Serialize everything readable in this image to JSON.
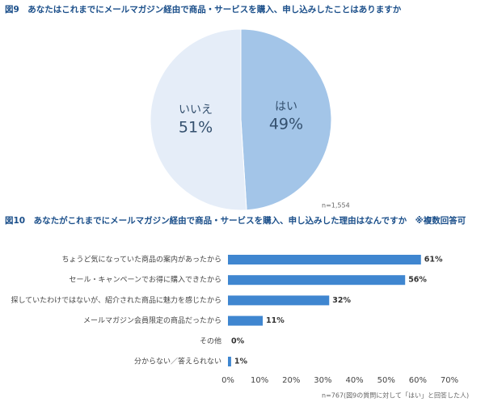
{
  "chart_data": [
    {
      "type": "pie",
      "title": "図9　あなたはこれまでにメールマガジン経由で商品・サービスを購入、申し込みしたことはありますか",
      "categories": [
        "はい",
        "いいえ"
      ],
      "values": [
        49,
        51
      ],
      "value_labels": [
        "49%",
        "51%"
      ],
      "colors": [
        "#a3c5e8",
        "#e5edf8"
      ],
      "note": "n=1,554"
    },
    {
      "type": "bar",
      "horizontal": true,
      "title": "図10　あなたがこれまでにメールマガジン経由で商品・サービスを購入、申し込みした理由はなんですか　※複数回答可",
      "categories": [
        "ちょうど気になっていた商品の案内があったから",
        "セール・キャンペーンでお得に購入できたから",
        "探していたわけではないが、紹介された商品に魅力を感じたから",
        "メールマガジン会員限定の商品だったから",
        "その他",
        "分からない／答えられない"
      ],
      "values": [
        61,
        56,
        32,
        11,
        0,
        1
      ],
      "value_labels": [
        "61%",
        "56%",
        "32%",
        "11%",
        "0%",
        "1%"
      ],
      "color": "#3f86d0",
      "xlim": [
        0,
        70
      ],
      "xticks": [
        {
          "value": 0,
          "label": "0%"
        },
        {
          "value": 10,
          "label": "10%"
        },
        {
          "value": 20,
          "label": "20%"
        },
        {
          "value": 30,
          "label": "30%"
        },
        {
          "value": 40,
          "label": "40%"
        },
        {
          "value": 50,
          "label": "50%"
        },
        {
          "value": 60,
          "label": "60%"
        },
        {
          "value": 70,
          "label": "70%"
        }
      ],
      "grid": false,
      "note": "n=767(図9の質問に対して「はい」と回答した人)"
    }
  ]
}
